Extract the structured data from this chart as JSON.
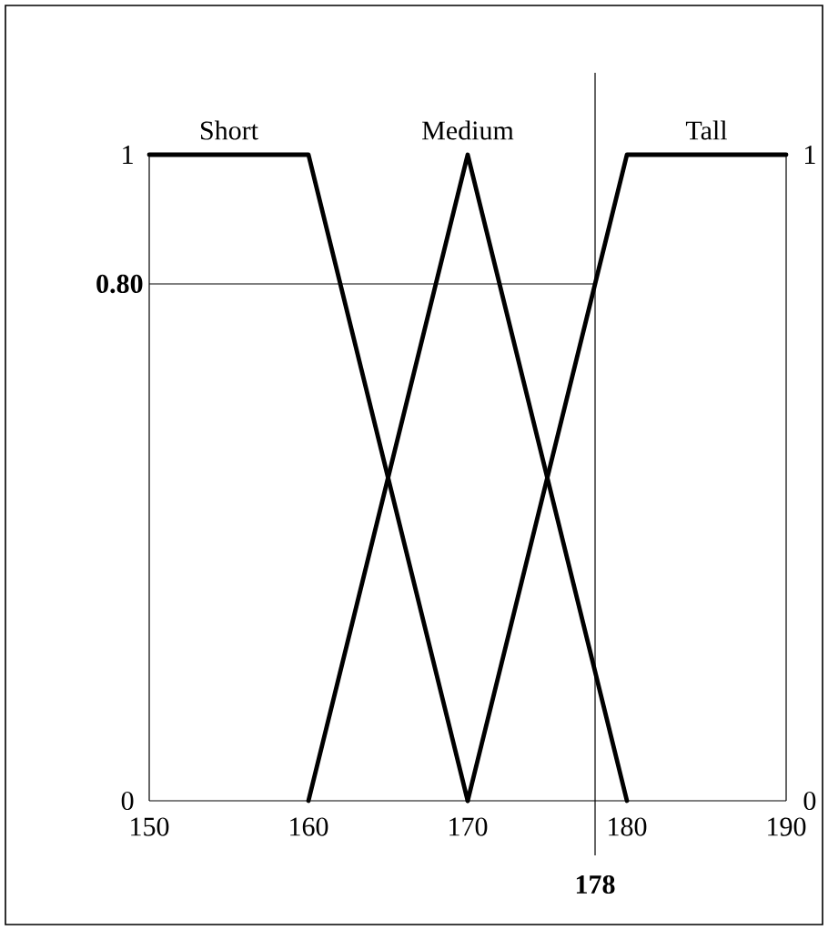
{
  "chart_data": {
    "type": "line",
    "series": [
      {
        "name": "Short",
        "color": "#000000",
        "x": [
          150,
          160,
          170
        ],
        "values": [
          1,
          1,
          0
        ]
      },
      {
        "name": "Medium",
        "color": "#000000",
        "x": [
          160,
          170,
          180
        ],
        "values": [
          0,
          1,
          0
        ]
      },
      {
        "name": "Tall",
        "color": "#000000",
        "x": [
          170,
          180,
          190
        ],
        "values": [
          0,
          1,
          1
        ]
      }
    ],
    "xlim": [
      150,
      190
    ],
    "xticks": [
      150,
      160,
      170,
      180,
      190
    ],
    "ylim": [
      0,
      1
    ],
    "yticks": [
      0,
      1
    ],
    "y2lim": [
      0,
      1
    ],
    "y2ticks": [
      0,
      1
    ],
    "ref_lines": [
      {
        "axis": "y",
        "value": 0.8,
        "label": "0.80"
      },
      {
        "axis": "x",
        "value": 178,
        "label": "178"
      }
    ]
  }
}
